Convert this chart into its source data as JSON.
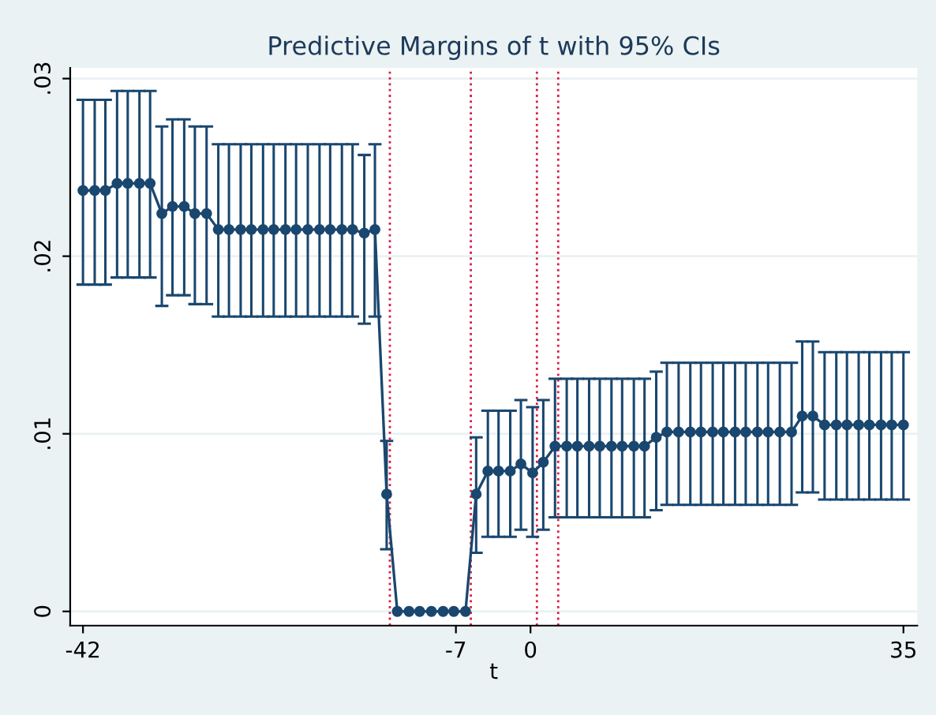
{
  "chart_data": {
    "type": "line",
    "title": "Predictive Margins of t with 95% CIs",
    "xlabel": "t",
    "x": [
      -42.0,
      -40.9,
      -39.9,
      -38.8,
      -37.8,
      -36.7,
      -35.7,
      -34.6,
      -33.6,
      -32.5,
      -31.5,
      -30.4,
      -29.3,
      -28.3,
      -27.2,
      -26.2,
      -25.1,
      -24.1,
      -23.0,
      -22.0,
      -20.9,
      -19.8,
      -18.8,
      -17.7,
      -16.7,
      -15.6,
      -14.6,
      -13.5,
      -12.5,
      -11.4,
      -10.4,
      -9.3,
      -8.2,
      -7.2,
      -6.1,
      -5.1,
      -4.0,
      -3.0,
      -1.9,
      -0.9,
      0.2,
      1.2,
      2.3,
      3.4,
      4.4,
      5.5,
      6.5,
      7.6,
      8.6,
      9.7,
      10.7,
      11.8,
      12.8,
      13.9,
      15.0,
      16.0,
      17.1,
      18.1,
      19.2,
      20.2,
      21.3,
      22.3,
      23.4,
      24.5,
      25.5,
      26.5,
      27.6,
      28.7,
      29.7,
      30.8,
      31.8,
      32.9,
      33.9,
      35.0
    ],
    "series": [
      {
        "color": "#1a476f",
        "values": [
          0.0237,
          0.0237,
          0.0237,
          0.0241,
          0.0241,
          0.0241,
          0.0241,
          0.0224,
          0.0228,
          0.0228,
          0.0224,
          0.0224,
          0.0215,
          0.0215,
          0.0215,
          0.0215,
          0.0215,
          0.0215,
          0.0215,
          0.0215,
          0.0215,
          0.0215,
          0.0215,
          0.0215,
          0.0215,
          0.0213,
          0.0215,
          0.0066,
          0,
          0,
          0,
          0,
          0,
          0,
          0,
          0.0066,
          0.0079,
          0.0079,
          0.0079,
          0.0083,
          0.0078,
          0.0084,
          0.0093,
          0.0093,
          0.0093,
          0.0093,
          0.0093,
          0.0093,
          0.0093,
          0.0093,
          0.0093,
          0.0098,
          0.0101,
          0.0101,
          0.0101,
          0.0101,
          0.0101,
          0.0101,
          0.0101,
          0.0101,
          0.0101,
          0.0101,
          0.0101,
          0.0101,
          0.011,
          0.011,
          0.0105,
          0.0105,
          0.0105,
          0.0105,
          0.0105,
          0.0105,
          0.0105,
          0.0105
        ],
        "errors": [
          [
            0.0184,
            0.0288
          ],
          [
            0.0184,
            0.0288
          ],
          [
            0.0184,
            0.0288
          ],
          [
            0.0188,
            0.0293
          ],
          [
            0.0188,
            0.0293
          ],
          [
            0.0188,
            0.0293
          ],
          [
            0.0188,
            0.0293
          ],
          [
            0.0172,
            0.0273
          ],
          [
            0.0178,
            0.0277
          ],
          [
            0.0178,
            0.0277
          ],
          [
            0.0173,
            0.0273
          ],
          [
            0.0173,
            0.0273
          ],
          [
            0.0166,
            0.0263
          ],
          [
            0.0166,
            0.0263
          ],
          [
            0.0166,
            0.0263
          ],
          [
            0.0166,
            0.0263
          ],
          [
            0.0166,
            0.0263
          ],
          [
            0.0166,
            0.0263
          ],
          [
            0.0166,
            0.0263
          ],
          [
            0.0166,
            0.0263
          ],
          [
            0.0166,
            0.0263
          ],
          [
            0.0166,
            0.0263
          ],
          [
            0.0166,
            0.0263
          ],
          [
            0.0166,
            0.0263
          ],
          [
            0.0166,
            0.0263
          ],
          [
            0.0162,
            0.0257
          ],
          [
            0.0166,
            0.0263
          ],
          [
            0.0035,
            0.0096
          ],
          null,
          null,
          null,
          null,
          null,
          null,
          null,
          [
            0.0033,
            0.0098
          ],
          [
            0.0042,
            0.0113
          ],
          [
            0.0042,
            0.0113
          ],
          [
            0.0042,
            0.0113
          ],
          [
            0.0046,
            0.0119
          ],
          [
            0.0042,
            0.0115
          ],
          [
            0.0046,
            0.0119
          ],
          [
            0.0053,
            0.0131
          ],
          [
            0.0053,
            0.0131
          ],
          [
            0.0053,
            0.0131
          ],
          [
            0.0053,
            0.0131
          ],
          [
            0.0053,
            0.0131
          ],
          [
            0.0053,
            0.0131
          ],
          [
            0.0053,
            0.0131
          ],
          [
            0.0053,
            0.0131
          ],
          [
            0.0053,
            0.0131
          ],
          [
            0.0057,
            0.0135
          ],
          [
            0.006,
            0.014
          ],
          [
            0.006,
            0.014
          ],
          [
            0.006,
            0.014
          ],
          [
            0.006,
            0.014
          ],
          [
            0.006,
            0.014
          ],
          [
            0.006,
            0.014
          ],
          [
            0.006,
            0.014
          ],
          [
            0.006,
            0.014
          ],
          [
            0.006,
            0.014
          ],
          [
            0.006,
            0.014
          ],
          [
            0.006,
            0.014
          ],
          [
            0.006,
            0.014
          ],
          [
            0.0067,
            0.0152
          ],
          [
            0.0067,
            0.0152
          ],
          [
            0.0063,
            0.0146
          ],
          [
            0.0063,
            0.0146
          ],
          [
            0.0063,
            0.0146
          ],
          [
            0.0063,
            0.0146
          ],
          [
            0.0063,
            0.0146
          ],
          [
            0.0063,
            0.0146
          ],
          [
            0.0063,
            0.0146
          ],
          [
            0.0063,
            0.0146
          ]
        ]
      }
    ],
    "xlim": [
      -43.2,
      36.3
    ],
    "xticks": [
      -42,
      -7,
      0,
      35
    ],
    "ylim": [
      -0.0008,
      0.0306
    ],
    "yticks": [
      {
        "value": 0,
        "label": "0"
      },
      {
        "value": 0.01,
        "label": ".01"
      },
      {
        "value": 0.02,
        "label": ".02"
      },
      {
        "value": 0.03,
        "label": ".03"
      }
    ],
    "ref_lines": [
      {
        "axis": "x",
        "value": -13.2,
        "color": "#d6204a",
        "line_style": "dotted"
      },
      {
        "axis": "x",
        "value": -5.6,
        "color": "#d6204a",
        "line_style": "dotted"
      },
      {
        "axis": "x",
        "value": 0.6,
        "color": "#d6204a",
        "line_style": "dotted"
      },
      {
        "axis": "x",
        "value": 2.6,
        "color": "#d6204a",
        "line_style": "dotted"
      }
    ],
    "grid": "y",
    "marker": "circle",
    "line_style": "solid"
  }
}
